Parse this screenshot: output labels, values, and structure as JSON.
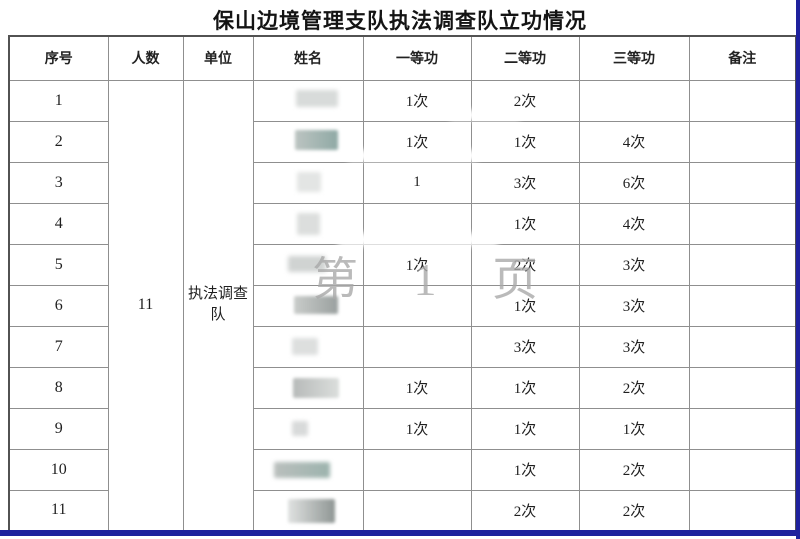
{
  "page": {
    "title": "保山边境管理支队执法调查队立功情况",
    "watermark": "第 1 页"
  },
  "colors": {
    "page_edge_blue": "#1e219d",
    "grid_line": "#8f8f8f",
    "outer_border": "#525252",
    "watermark_gray": "#a9a9a9"
  },
  "table": {
    "headers": [
      "序号",
      "人数",
      "单位",
      "姓名",
      "一等功",
      "二等功",
      "三等功",
      "备注"
    ],
    "group": {
      "renshu": "11",
      "danwei": "执法调查队"
    },
    "rows": [
      {
        "no": "1",
        "first": "1次",
        "second": "2次",
        "third": "",
        "remark": ""
      },
      {
        "no": "2",
        "first": "1次",
        "second": "1次",
        "third": "4次",
        "remark": ""
      },
      {
        "no": "3",
        "first": "1",
        "second": "3次",
        "third": "6次",
        "remark": ""
      },
      {
        "no": "4",
        "first": "",
        "second": "1次",
        "third": "4次",
        "remark": ""
      },
      {
        "no": "5",
        "first": "1次",
        "second": "2次",
        "third": "3次",
        "remark": ""
      },
      {
        "no": "6",
        "first": "",
        "second": "1次",
        "third": "3次",
        "remark": ""
      },
      {
        "no": "7",
        "first": "",
        "second": "3次",
        "third": "3次",
        "remark": ""
      },
      {
        "no": "8",
        "first": "1次",
        "second": "1次",
        "third": "2次",
        "remark": ""
      },
      {
        "no": "9",
        "first": "1次",
        "second": "1次",
        "third": "1次",
        "remark": ""
      },
      {
        "no": "10",
        "first": "",
        "second": "1次",
        "third": "2次",
        "remark": ""
      },
      {
        "no": "11",
        "first": "",
        "second": "2次",
        "third": "2次",
        "remark": ""
      }
    ]
  }
}
